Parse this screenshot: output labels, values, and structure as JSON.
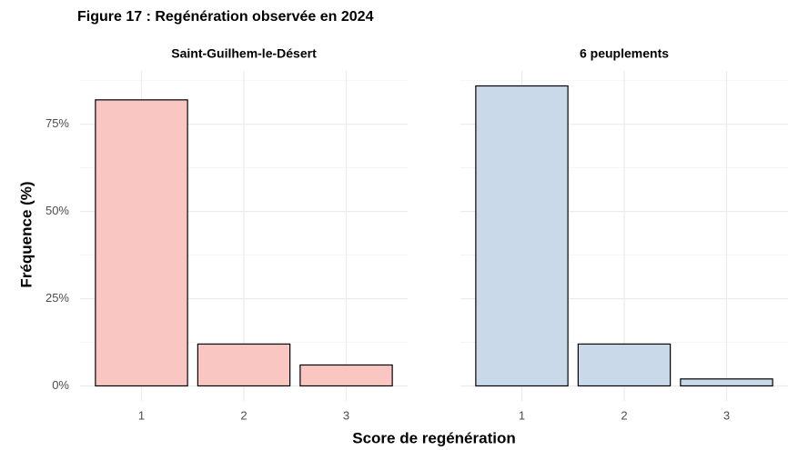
{
  "title": "Figure 17 : Regénération observée en 2024",
  "x_label": "Score de regénération",
  "y_label": "Fréquence (%)",
  "chart_data": [
    {
      "type": "bar",
      "title": "Saint-Guilhem-le-Désert",
      "categories": [
        "1",
        "2",
        "3"
      ],
      "values": [
        82,
        12,
        6
      ],
      "color": "#f9c6c2",
      "ylim": [
        -4.3,
        90.3
      ],
      "yticks": [
        {
          "value": 0,
          "label": "0%"
        },
        {
          "value": 25,
          "label": "25%"
        },
        {
          "value": 50,
          "label": "50%"
        },
        {
          "value": 75,
          "label": "75%"
        }
      ],
      "grid": true
    },
    {
      "type": "bar",
      "title": "6 peuplements",
      "categories": [
        "1",
        "2",
        "3"
      ],
      "values": [
        86,
        12,
        2
      ],
      "color": "#c9d9ea",
      "ylim": [
        -4.3,
        90.3
      ],
      "yticks": [
        {
          "value": 0,
          "label": "0%"
        },
        {
          "value": 25,
          "label": "25%"
        },
        {
          "value": 50,
          "label": "50%"
        },
        {
          "value": 75,
          "label": "75%"
        }
      ],
      "grid": true
    }
  ]
}
